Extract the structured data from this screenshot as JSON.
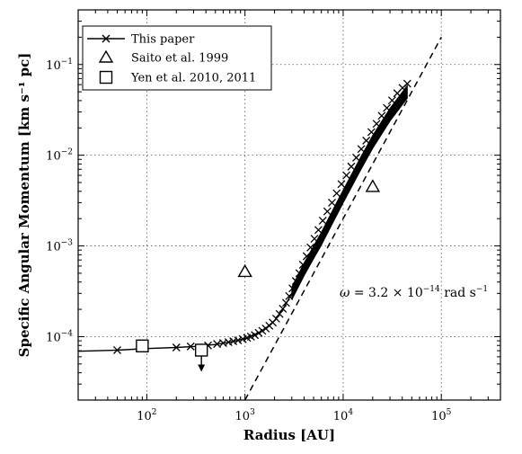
{
  "chart_data": {
    "type": "scatter",
    "x_scale": "log",
    "y_scale": "log",
    "xlim": [
      20,
      400000
    ],
    "ylim": [
      2e-05,
      0.4
    ],
    "xlabel": "Radius [AU]",
    "ylabel": "Specific Angular Momentum [km s⁻¹ pc]",
    "x_ticks": [
      {
        "value": 100,
        "base": "10",
        "exp": "2"
      },
      {
        "value": 1000,
        "base": "10",
        "exp": "3"
      },
      {
        "value": 10000,
        "base": "10",
        "exp": "4"
      },
      {
        "value": 100000,
        "base": "10",
        "exp": "5"
      }
    ],
    "y_ticks": [
      {
        "value": 0.0001,
        "base": "10",
        "exp": "−4"
      },
      {
        "value": 0.001,
        "base": "10",
        "exp": "−3"
      },
      {
        "value": 0.01,
        "base": "10",
        "exp": "−2"
      },
      {
        "value": 0.1,
        "base": "10",
        "exp": "−1"
      }
    ],
    "grid": true,
    "legend_position": "top-left",
    "legend": [
      {
        "label": "This paper",
        "marker": "x-line"
      },
      {
        "label": "Saito et al. 1999",
        "marker": "triangle"
      },
      {
        "label": "Yen et al. 2010, 2011",
        "marker": "square"
      }
    ],
    "series": [
      {
        "name": "This paper",
        "marker": "x",
        "line": [
          [
            20,
            6.9e-05
          ],
          [
            50,
            7.1e-05
          ],
          [
            100,
            7.4e-05
          ],
          [
            200,
            7.6e-05
          ],
          [
            300,
            7.8e-05
          ],
          [
            500,
            8.2e-05
          ],
          [
            700,
            8.7e-05
          ],
          [
            1000,
            9.5e-05
          ],
          [
            1500,
            0.000115
          ],
          [
            2000,
            0.00015
          ],
          [
            2500,
            0.00021
          ],
          [
            3000,
            0.0003
          ],
          [
            4000,
            0.00055
          ],
          [
            5000,
            0.00085
          ],
          [
            6000,
            0.0012
          ],
          [
            8000,
            0.0022
          ],
          [
            10000,
            0.0035
          ],
          [
            15000,
            0.008
          ],
          [
            20000,
            0.014
          ],
          [
            30000,
            0.028
          ],
          [
            45000,
            0.05
          ]
        ],
        "points": [
          [
            50,
            7.1e-05
          ],
          [
            200,
            7.6e-05
          ],
          [
            280,
            7.8e-05
          ],
          [
            420,
            8e-05
          ],
          [
            520,
            8.3e-05
          ],
          [
            600,
            8.5e-05
          ],
          [
            680,
            8.7e-05
          ],
          [
            760,
            8.9e-05
          ],
          [
            850,
            9.1e-05
          ],
          [
            950,
            9.4e-05
          ],
          [
            1050,
            9.7e-05
          ],
          [
            1150,
            0.0001
          ],
          [
            1260,
            0.000104
          ],
          [
            1380,
            0.00011
          ],
          [
            1500,
            0.000116
          ],
          [
            1630,
            0.000123
          ],
          [
            1770,
            0.000132
          ],
          [
            1920,
            0.000143
          ],
          [
            2080,
            0.000158
          ],
          [
            2250,
            0.000178
          ],
          [
            2430,
            0.000203
          ],
          [
            2620,
            0.000236
          ],
          [
            2820,
            0.00028
          ],
          [
            3050,
            0.00034
          ],
          [
            3300,
            0.00041
          ],
          [
            3580,
            0.0005
          ],
          [
            3900,
            0.00062
          ],
          [
            4250,
            0.00077
          ],
          [
            4650,
            0.00096
          ],
          [
            5100,
            0.0012
          ],
          [
            5600,
            0.0015
          ],
          [
            6200,
            0.0019
          ],
          [
            6900,
            0.0024
          ],
          [
            7700,
            0.003
          ],
          [
            8600,
            0.0038
          ],
          [
            9600,
            0.0048
          ],
          [
            10800,
            0.006
          ],
          [
            12100,
            0.0075
          ],
          [
            13600,
            0.0094
          ],
          [
            15300,
            0.0117
          ],
          [
            17200,
            0.0145
          ],
          [
            19400,
            0.018
          ],
          [
            21900,
            0.0222
          ],
          [
            24700,
            0.0272
          ],
          [
            27900,
            0.0332
          ],
          [
            31500,
            0.0402
          ],
          [
            35600,
            0.0482
          ],
          [
            40200,
            0.0552
          ],
          [
            45000,
            0.0615
          ]
        ],
        "band_halfwidth_ylog": 0.07
      },
      {
        "name": "Saito et al. 1999",
        "marker": "triangle",
        "points": [
          [
            1000,
            0.00052
          ],
          [
            20000,
            0.0045
          ]
        ]
      },
      {
        "name": "Yen et al. 2010, 2011",
        "marker": "square",
        "points": [
          [
            90,
            7.9e-05
          ],
          [
            360,
            7.1e-05
          ]
        ],
        "upper_limit_index": 1
      }
    ],
    "reference_line": {
      "style": "dashed",
      "points": [
        [
          1000,
          2e-05
        ],
        [
          100000,
          0.2
        ]
      ]
    },
    "annotation": {
      "lhs": "ω",
      "eq": " = 3.2 × 10",
      "exp": "−14",
      "units": " rad s",
      "units_exp": "−1"
    }
  }
}
